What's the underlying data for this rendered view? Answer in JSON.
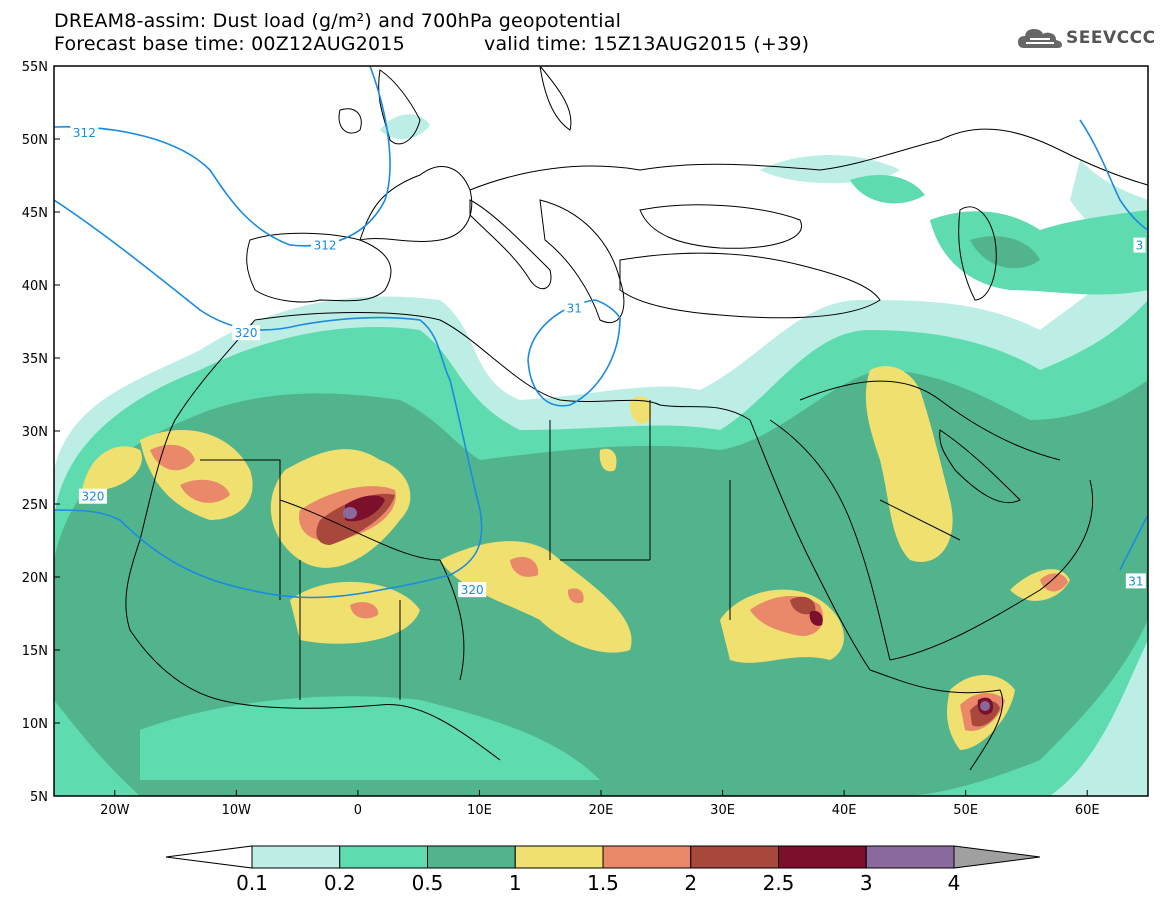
{
  "header": {
    "title_line1": "DREAM8-assim: Dust load (g/m²) and 700hPa geopotential",
    "title_line2": "Forecast base time: 00Z12AUG2015",
    "valid_time": "valid time: 15Z13AUG2015 (+39)",
    "logo_text": "SEEVCCC",
    "logo_icon": "cloud-logo-icon"
  },
  "map": {
    "lat_range": [
      5,
      55
    ],
    "lon_range": [
      -25,
      65
    ],
    "lat_labels": [
      "55N",
      "50N",
      "45N",
      "40N",
      "35N",
      "30N",
      "25N",
      "20N",
      "15N",
      "10N",
      "5N"
    ],
    "lon_labels": [
      "20W",
      "10W",
      "0",
      "10E",
      "20E",
      "30E",
      "40E",
      "50E",
      "60E"
    ],
    "contour_labels": [
      {
        "text": "312",
        "lon": -22.5,
        "lat": 50.4
      },
      {
        "text": "312",
        "lon": -2.7,
        "lat": 42.7
      },
      {
        "text": "320",
        "lon": -9.2,
        "lat": 36.7
      },
      {
        "text": "320",
        "lon": -21.8,
        "lat": 25.5
      },
      {
        "text": "320",
        "lon": 9.4,
        "lat": 19.1
      },
      {
        "text": "31",
        "lon": 17.8,
        "lat": 38.4
      },
      {
        "text": "31",
        "lon": 64.0,
        "lat": 19.7
      },
      {
        "text": "3",
        "lon": 64.3,
        "lat": 42.7
      }
    ]
  },
  "colorbar": {
    "labels": [
      "0.1",
      "0.2",
      "0.5",
      "1",
      "1.5",
      "2",
      "2.5",
      "3",
      "4"
    ],
    "colors": [
      "#ffffff",
      "#bdeee6",
      "#5edcb0",
      "#52b48c",
      "#f0e070",
      "#e9896a",
      "#a8473c",
      "#7b0f2c",
      "#8a6a9c",
      "#a0a0a0"
    ]
  },
  "colors": {
    "contour": "#1a8be0",
    "land_outline": "#000000",
    "background": "#ffffff"
  }
}
